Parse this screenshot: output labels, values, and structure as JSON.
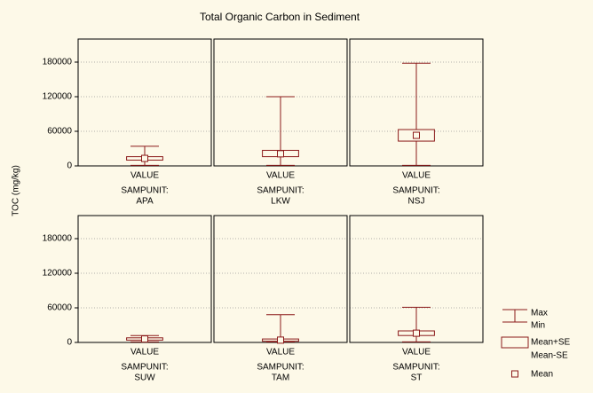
{
  "chart_data": {
    "type": "box",
    "title": "Total Organic Carbon in Sediment",
    "y_label": "TOC (mg/kg)",
    "category": "VALUE",
    "facet_label": "SAMPUNIT:",
    "color": "#8b1a1a",
    "ylim": [
      0,
      220000
    ],
    "yticks": [
      0,
      60000,
      120000,
      180000
    ],
    "grid": true,
    "legend": {
      "max": "Max",
      "min": "Min",
      "se_high": "Mean+SE",
      "se_low": "Mean-SE",
      "mean": "Mean"
    },
    "panels": [
      {
        "name": "APA",
        "max": 34000,
        "min": 1000,
        "se_high": 16000,
        "se_low": 10000,
        "mean": 13000
      },
      {
        "name": "LKW",
        "max": 120000,
        "min": 1000,
        "se_high": 27000,
        "se_low": 16000,
        "mean": 21000
      },
      {
        "name": "NSJ",
        "max": 178000,
        "min": 1000,
        "se_high": 63000,
        "se_low": 43000,
        "mean": 53000
      },
      {
        "name": "SUW",
        "max": 12000,
        "min": 1000,
        "se_high": 8000,
        "se_low": 4000,
        "mean": 6000
      },
      {
        "name": "TAM",
        "max": 48000,
        "min": 1000,
        "se_high": 6000,
        "se_low": 2000,
        "mean": 4000
      },
      {
        "name": "ST",
        "max": 61000,
        "min": 1000,
        "se_high": 20000,
        "se_low": 12000,
        "mean": 16000
      }
    ]
  }
}
